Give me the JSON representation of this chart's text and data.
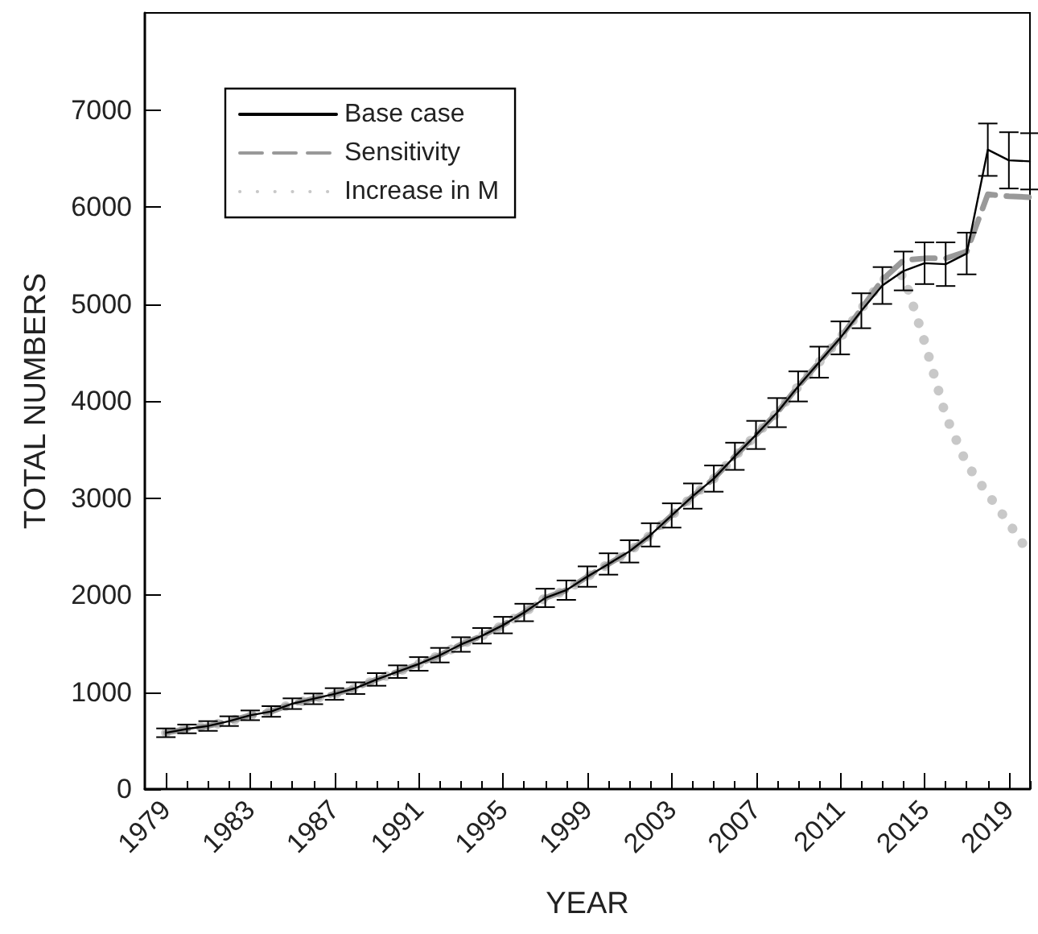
{
  "chart_data": {
    "type": "line",
    "xlabel": "YEAR",
    "ylabel": "TOTAL NUMBERS",
    "x": [
      1979,
      1980,
      1981,
      1982,
      1983,
      1984,
      1985,
      1986,
      1987,
      1988,
      1989,
      1990,
      1991,
      1992,
      1993,
      1994,
      1995,
      1996,
      1997,
      1998,
      1999,
      2000,
      2001,
      2002,
      2003,
      2004,
      2005,
      2006,
      2007,
      2008,
      2009,
      2010,
      2011,
      2012,
      2013,
      2014,
      2015,
      2016,
      2017,
      2018,
      2019,
      2020
    ],
    "series": [
      {
        "name": "Base case",
        "color": "#000000",
        "line_style": "solid",
        "values": [
          580,
          620,
          650,
          700,
          760,
          800,
          880,
          930,
          980,
          1040,
          1130,
          1210,
          1290,
          1380,
          1490,
          1580,
          1690,
          1820,
          1970,
          2050,
          2190,
          2320,
          2450,
          2620,
          2820,
          3020,
          3200,
          3430,
          3650,
          3880,
          4150,
          4400,
          4650,
          4930,
          5190,
          5340,
          5420,
          5410,
          5520,
          6590,
          6480,
          6470
        ],
        "errors": [
          45,
          45,
          50,
          50,
          50,
          55,
          55,
          55,
          60,
          60,
          65,
          65,
          70,
          75,
          75,
          80,
          85,
          90,
          95,
          100,
          105,
          110,
          115,
          120,
          125,
          130,
          135,
          140,
          145,
          150,
          155,
          160,
          170,
          180,
          190,
          200,
          215,
          225,
          215,
          270,
          290,
          290
        ]
      },
      {
        "name": "Sensitivity",
        "color": "#999999",
        "line_style": "dashed",
        "values": [
          580,
          620,
          650,
          700,
          760,
          800,
          880,
          930,
          980,
          1040,
          1130,
          1210,
          1290,
          1380,
          1490,
          1580,
          1690,
          1820,
          1970,
          2050,
          2190,
          2320,
          2450,
          2620,
          2820,
          3020,
          3200,
          3430,
          3650,
          3880,
          4150,
          4400,
          4650,
          4950,
          5250,
          5450,
          5470,
          5470,
          5540,
          6130,
          6110,
          6100
        ]
      },
      {
        "name": "Increase in M",
        "color": "#c8c8c8",
        "line_style": "dotted",
        "values": [
          580,
          620,
          650,
          700,
          760,
          800,
          880,
          930,
          980,
          1040,
          1130,
          1210,
          1290,
          1380,
          1490,
          1580,
          1690,
          1820,
          1970,
          2050,
          2190,
          2320,
          2450,
          2620,
          2820,
          3020,
          3200,
          3430,
          3650,
          3880,
          4150,
          4400,
          4650,
          4950,
          5250,
          5300,
          4610,
          3850,
          3350,
          3040,
          2740,
          2420
        ]
      }
    ],
    "xlim": [
      1978,
      2020
    ],
    "xticks": [
      1979,
      {
        "value": 1980,
        "label": null
      },
      {
        "value": 1981,
        "label": null
      },
      {
        "value": 1982,
        "label": null
      },
      1983,
      {
        "value": 1984,
        "label": null
      },
      {
        "value": 1985,
        "label": null
      },
      {
        "value": 1986,
        "label": null
      },
      1987,
      {
        "value": 1988,
        "label": null
      },
      {
        "value": 1989,
        "label": null
      },
      {
        "value": 1990,
        "label": null
      },
      1991,
      {
        "value": 1992,
        "label": null
      },
      {
        "value": 1993,
        "label": null
      },
      {
        "value": 1994,
        "label": null
      },
      1995,
      {
        "value": 1996,
        "label": null
      },
      {
        "value": 1997,
        "label": null
      },
      {
        "value": 1998,
        "label": null
      },
      1999,
      {
        "value": 2000,
        "label": null
      },
      {
        "value": 2001,
        "label": null
      },
      {
        "value": 2002,
        "label": null
      },
      2003,
      {
        "value": 2004,
        "label": null
      },
      {
        "value": 2005,
        "label": null
      },
      {
        "value": 2006,
        "label": null
      },
      2007,
      {
        "value": 2008,
        "label": null
      },
      {
        "value": 2009,
        "label": null
      },
      {
        "value": 2010,
        "label": null
      },
      2011,
      {
        "value": 2012,
        "label": null
      },
      {
        "value": 2013,
        "label": null
      },
      {
        "value": 2014,
        "label": null
      },
      2015,
      {
        "value": 2016,
        "label": null
      },
      {
        "value": 2017,
        "label": null
      },
      {
        "value": 2018,
        "label": null
      },
      2019,
      {
        "value": 2020,
        "label": null
      }
    ],
    "ylim": [
      0,
      8000
    ],
    "yticks": [
      0,
      1000,
      2000,
      3000,
      4000,
      5000,
      6000,
      7000
    ],
    "grid": false,
    "legend": "top left",
    "marker": "none"
  }
}
